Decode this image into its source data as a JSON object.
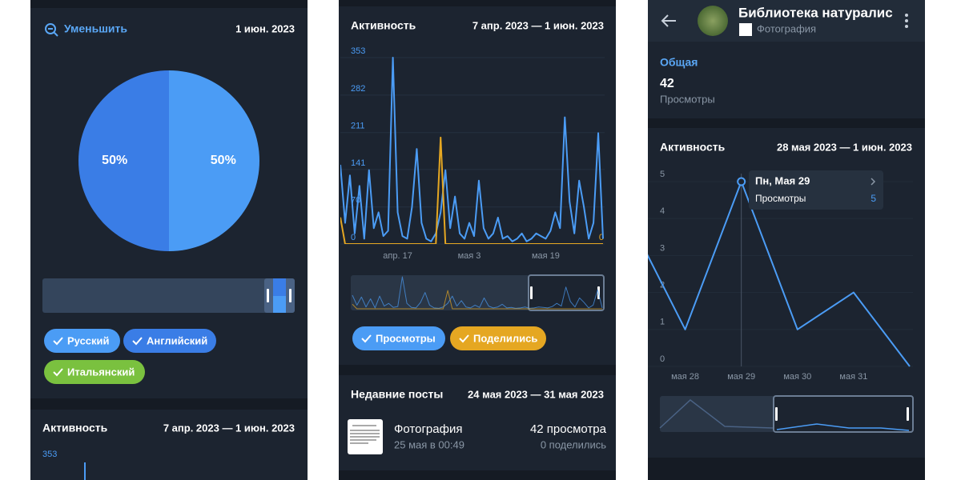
{
  "panels": [
    {
      "zoom_out": "Уменьшить",
      "date": "1 июн. 2023",
      "pie": {
        "type": "pie",
        "values": [
          50,
          50
        ],
        "value_labels": [
          "50%",
          "50%"
        ],
        "colors": [
          "#4b9cf5",
          "#3a7de6"
        ]
      },
      "legend": [
        {
          "name": "Русский",
          "color": "#4b9cf5"
        },
        {
          "name": "Английский",
          "color": "#3a7de6"
        },
        {
          "name": "Итальянский",
          "color": "#7ac13f"
        }
      ],
      "activity": {
        "title": "Активность",
        "range": "7 апр. 2023 — 1 июн. 2023",
        "yticks": [
          353
        ]
      }
    },
    {
      "activity": {
        "title": "Активность",
        "range": "7 апр. 2023 — 1 июн. 2023"
      },
      "chart": {
        "type": "line",
        "series": [
          {
            "name": "Просмотры",
            "color": "#4b9cf5",
            "values": [
              150,
              40,
              130,
              20,
              110,
              10,
              140,
              30,
              60,
              15,
              25,
              353,
              60,
              15,
              10,
              70,
              180,
              40,
              10,
              5,
              20,
              60,
              140,
              30,
              90,
              20,
              10,
              40,
              15,
              120,
              30,
              10,
              20,
              50,
              10,
              15,
              5,
              10,
              20,
              5,
              10,
              20,
              15,
              10,
              25,
              60,
              30,
              240,
              80,
              20,
              120,
              70,
              10,
              40,
              210,
              10
            ]
          },
          {
            "name": "Поделились",
            "color": "#e5a722",
            "axis": "y2",
            "values": [
              1,
              0,
              0,
              0,
              0,
              0,
              0,
              0,
              0,
              0,
              0,
              0,
              0,
              0,
              0,
              0,
              0,
              0,
              0,
              0,
              0,
              4,
              0,
              0,
              0,
              0,
              0,
              0,
              0,
              0,
              0,
              0,
              0,
              0,
              0,
              0,
              0,
              0,
              0,
              0,
              0,
              0,
              0,
              0,
              0,
              0,
              0,
              0,
              0,
              0,
              0,
              0,
              0,
              0,
              0,
              0
            ]
          }
        ],
        "xlim": [
          0,
          55
        ],
        "xticks": [
          {
            "value": 12,
            "label": "апр. 17"
          },
          {
            "value": 27,
            "label": "мая 3"
          },
          {
            "value": 43,
            "label": "мая 19"
          }
        ],
        "ylim": [
          0,
          353
        ],
        "yticks": [
          0,
          70,
          141,
          211,
          282,
          353
        ],
        "y2lim": [
          0,
          7
        ],
        "y2ticks": [
          0
        ]
      },
      "recent": {
        "title": "Недавние посты",
        "range": "24 мая 2023 — 31 мая 2023",
        "post": {
          "title": "Фотография",
          "date": "25 мая в 00:49",
          "views": "42 просмотра",
          "shares": "0 поделились"
        }
      }
    },
    {
      "header": {
        "title": "Библиотека натуралис",
        "subtitle": "Фотография"
      },
      "overview": {
        "title": "Общая",
        "value": "42",
        "label": "Просмотры"
      },
      "activity": {
        "title": "Активность",
        "range": "28 мая 2023 — 1 июн. 2023"
      },
      "chart": {
        "type": "line",
        "series": [
          {
            "name": "Просмотры",
            "color": "#4b9cf5",
            "values": [
              4,
              1,
              5,
              1,
              2,
              0
            ]
          }
        ],
        "x": [
          -1,
          0,
          1,
          2,
          3,
          4
        ],
        "xlim": [
          -0.65,
          4
        ],
        "xticks": [
          {
            "value": 0,
            "label": "мая 28"
          },
          {
            "value": 1,
            "label": "мая 29"
          },
          {
            "value": 2,
            "label": "мая 30"
          },
          {
            "value": 3,
            "label": "мая 31"
          }
        ],
        "ylim": [
          0,
          5
        ],
        "yticks": [
          0,
          1,
          2,
          3,
          4,
          5
        ],
        "tooltip": {
          "title": "Пн, Мая 29"
        }
      }
    }
  ]
}
